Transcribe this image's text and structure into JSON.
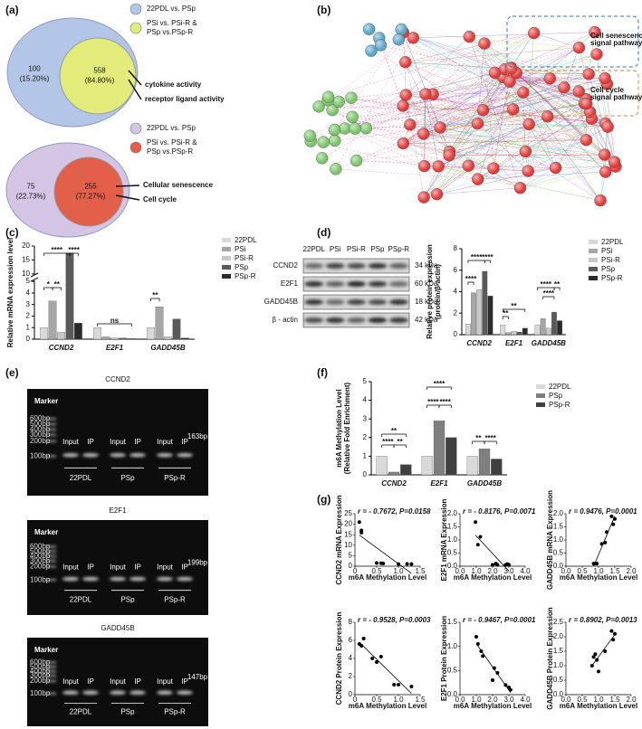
{
  "panel_labels": [
    "(a)",
    "(b)",
    "(c)",
    "(d)",
    "(e)",
    "(f)",
    "(g)"
  ],
  "venns": [
    {
      "legend": [
        {
          "color": "#b4c6e7",
          "lines": [
            "22PDL vs. PSp"
          ]
        },
        {
          "color": "#e2ec7a",
          "lines": [
            "PSi vs. PSi-R &",
            "PSp vs.PSp-R"
          ]
        }
      ],
      "outer": [
        "100",
        "(15.20%)"
      ],
      "inner": [
        "558",
        "(84.80%)"
      ],
      "terms": [
        "cytokine activity",
        "receptor ligand activity"
      ]
    },
    {
      "legend": [
        {
          "color": "#d5c5e4",
          "lines": [
            "22PDL vs. PSp"
          ]
        },
        {
          "color": "#e2604a",
          "lines": [
            "PSi vs. PSi-R &",
            "PSp vs.PSp-R"
          ]
        }
      ],
      "outer": [
        "75",
        "(22.73%)"
      ],
      "inner": [
        "255",
        "(77.27%)"
      ],
      "terms": [
        "Cellular senescence",
        "Cell cycle"
      ]
    }
  ],
  "network": {
    "pathways": [
      {
        "lines": [
          "Cell senescence",
          "signal pathway"
        ],
        "color": "#2e75b6"
      },
      {
        "lines": [
          "Cell  cycle",
          "signal pathway"
        ],
        "color": "#e07b39"
      }
    ]
  },
  "blot": {
    "lanes": [
      "22PDL",
      "PSi",
      "PSi-R",
      "PSp",
      "PSp-R"
    ],
    "proteins": [
      "CCND2",
      "E2F1",
      "GADD45B",
      "β - actin"
    ],
    "sizes": [
      "34 kDa",
      "60 kDa",
      "18 kDa",
      "42 kDa"
    ]
  },
  "gels": [
    {
      "title": "CCND2",
      "marker": "Marker",
      "ladder": [
        "600bp",
        "500bp",
        "400bp",
        "300bp",
        "200bp",
        "100bp"
      ],
      "lanes": [
        "Input",
        "IP",
        "Input",
        "IP",
        "Input",
        "IP"
      ],
      "groups": [
        "22PDL",
        "PSp",
        "PSp-R"
      ],
      "size": "163bp"
    },
    {
      "title": "E2F1",
      "marker": "Marker",
      "ladder": [
        "600bp",
        "500bp",
        "400bp",
        "300bp",
        "200bp",
        "100bp"
      ],
      "lanes": [
        "Input",
        "IP",
        "Input",
        "IP",
        "Input",
        "IP"
      ],
      "groups": [
        "22PDL",
        "PSp",
        "PSp-R"
      ],
      "size": "199bp"
    },
    {
      "title": "GADD45B",
      "marker": "Marker",
      "ladder": [
        "600bp",
        "500bp",
        "400bp",
        "300bp",
        "200bp",
        "100bp"
      ],
      "lanes": [
        "Input",
        "IP",
        "Input",
        "IP",
        "Input",
        "IP"
      ],
      "groups": [
        "22PDL",
        "PSp",
        "PSp-R"
      ],
      "size": "147bp"
    }
  ],
  "chart_data": [
    {
      "type": "bar",
      "y_label": [
        "Relative mRNA expression level"
      ],
      "categories": [
        "CCND2",
        "E2F1",
        "GADD45B"
      ],
      "series": [
        {
          "name": "22PDL",
          "color": "#d9d9d9",
          "values": [
            1,
            1,
            1
          ]
        },
        {
          "name": "PSi",
          "color": "#a6a6a6",
          "values": [
            3.3,
            0.2,
            2.8
          ]
        },
        {
          "name": "PSi-R",
          "color": "#c8c8c8",
          "values": [
            0.6,
            0.1,
            0.2
          ]
        },
        {
          "name": "PSp",
          "color": "#5a5a5a",
          "values": [
            17.5,
            0.1,
            1.75
          ]
        },
        {
          "name": "PSp-R",
          "color": "#2b2b2b",
          "values": [
            1.4,
            0.05,
            0.1
          ]
        }
      ],
      "ylim": [
        0,
        20
      ],
      "yticks": [
        0,
        1,
        2,
        3,
        4,
        5,
        10,
        15,
        20
      ],
      "axis_break": [
        5,
        10
      ],
      "annotations": [
        "*",
        "**",
        "****",
        "****",
        "ns",
        "**"
      ]
    },
    {
      "type": "bar",
      "y_label": [
        "Relative protein expression",
        "(protein/β-actin)"
      ],
      "categories": [
        "CCND2",
        "E2F1",
        "GADD45B"
      ],
      "series": [
        {
          "name": "22PDL",
          "color": "#d9d9d9",
          "values": [
            1,
            0.9,
            0.9
          ]
        },
        {
          "name": "PSi",
          "color": "#a6a6a6",
          "values": [
            3.9,
            0.2,
            1.5
          ]
        },
        {
          "name": "PSi-R",
          "color": "#c8c8c8",
          "values": [
            4.2,
            0.3,
            0.6
          ]
        },
        {
          "name": "PSp",
          "color": "#5a5a5a",
          "values": [
            5.9,
            0.25,
            2.1
          ]
        },
        {
          "name": "PSp-R",
          "color": "#2b2b2b",
          "values": [
            3.6,
            0.6,
            1.3
          ]
        }
      ],
      "ylim": [
        0,
        8
      ],
      "yticks": [
        0,
        2,
        4,
        6,
        8
      ],
      "annotations": [
        "****",
        "****",
        "****",
        "**",
        "**",
        "****",
        "****",
        "**"
      ]
    },
    {
      "type": "bar",
      "y_label": [
        "m6A Methylation Level",
        "(Relative Fold Enrichment)"
      ],
      "categories": [
        "CCND2",
        "E2F1",
        "GADD45B"
      ],
      "series": [
        {
          "name": "22PDL",
          "color": "#d9d9d9",
          "values": [
            1,
            1,
            1
          ]
        },
        {
          "name": "PSp",
          "color": "#7f7f7f",
          "values": [
            0.15,
            2.9,
            1.4
          ]
        },
        {
          "name": "PSp-R",
          "color": "#404040",
          "values": [
            0.55,
            2.0,
            0.85
          ]
        }
      ],
      "ylim": [
        0,
        5
      ],
      "yticks": [
        0,
        1,
        2,
        3,
        4,
        5
      ],
      "annotations": [
        "**",
        "****",
        "**",
        "****",
        "****",
        "****",
        "**",
        "****"
      ]
    },
    {
      "type": "scatter",
      "annotation": "r = - 0.7672, P=0.0158",
      "y_label": "CCND2 mRNA Expression",
      "x_label": "m6A Methylation Level",
      "x": [
        0.1,
        0.15,
        0.15,
        0.5,
        0.6,
        0.65,
        1.0,
        1.2,
        1.3
      ],
      "values": [
        21,
        17,
        16,
        1.5,
        1.4,
        1.3,
        1,
        1.1,
        1.0
      ],
      "xlim": [
        0,
        1.5
      ],
      "xticks": [
        0,
        0.5,
        {
          "value": 1,
          "label": "1.0"
        },
        1.5
      ],
      "ylim": [
        0,
        25
      ],
      "yticks": [
        0,
        5,
        10,
        15,
        20,
        25
      ]
    },
    {
      "type": "scatter",
      "annotation": "r = - 0.8176, P=0.0071",
      "y_label": "E2F1 mRNA Expression",
      "x_label": "m6A Methylation Level",
      "x": [
        0.95,
        1.25,
        1.1,
        2.0,
        2.3,
        2.8,
        2.9,
        3.0,
        2.2
      ],
      "values": [
        1.68,
        1.12,
        0.82,
        0.05,
        0.05,
        0.05,
        0.08,
        0.05,
        0.1
      ],
      "xlim": [
        0,
        4
      ],
      "xticks": [
        {
          "value": 0,
          "label": "0.0"
        },
        {
          "value": 1,
          "label": "1.0"
        },
        {
          "value": 2,
          "label": "2.0"
        },
        {
          "value": 3,
          "label": "3.0"
        },
        {
          "value": 4,
          "label": "4.0"
        }
      ],
      "ylim": [
        0,
        2
      ],
      "yticks": [
        {
          "value": 0,
          "label": "0.0"
        },
        0.5,
        {
          "value": 1,
          "label": "1.0"
        },
        1.5,
        {
          "value": 2,
          "label": "2.0"
        }
      ]
    },
    {
      "type": "scatter",
      "annotation": "r = 0.9476, P=0.0001",
      "y_label": "GADD45B mRNA Expression",
      "x_label": "m6A Methylation Level",
      "x": [
        0.85,
        0.9,
        0.95,
        1.1,
        1.2,
        1.25,
        1.4,
        1.45,
        1.5
      ],
      "values": [
        0.1,
        0.1,
        0.1,
        0.85,
        0.9,
        1.3,
        1.9,
        1.6,
        1.8
      ],
      "xlim": [
        0,
        2
      ],
      "xticks": [
        {
          "value": 0,
          "label": "0.0"
        },
        0.5,
        {
          "value": 1,
          "label": "1.0"
        },
        1.5,
        {
          "value": 2,
          "label": "2.0"
        }
      ],
      "ylim": [
        0,
        2
      ],
      "yticks": [
        {
          "value": 0,
          "label": "0.0"
        },
        0.5,
        {
          "value": 1,
          "label": "1.0"
        },
        1.5,
        {
          "value": 2,
          "label": "2.0"
        }
      ]
    },
    {
      "type": "scatter",
      "annotation": "r = - 0.9528, P=0.0003",
      "y_label": "CCND2 Protein Expression",
      "x_label": "m6A Methylation Level",
      "x": [
        0.1,
        0.15,
        0.2,
        0.4,
        0.5,
        0.6,
        0.9,
        1.0,
        1.3
      ],
      "values": [
        5.6,
        5.4,
        6.2,
        4,
        3.6,
        4.2,
        1.1,
        1.1,
        0.9
      ],
      "xlim": [
        0,
        1.5
      ],
      "xticks": [
        0,
        0.5,
        {
          "value": 1,
          "label": "1.0"
        },
        1.5
      ],
      "ylim": [
        0,
        8
      ],
      "yticks": [
        0,
        2,
        4,
        6,
        8
      ]
    },
    {
      "type": "scatter",
      "annotation": "r = - 0.9467, P=0.0001",
      "y_label": "E2F1 Protein Expression",
      "x_label": "m6A Methylation Level",
      "x": [
        1.0,
        1.1,
        1.3,
        1.4,
        2.1,
        2.3,
        2.0,
        2.8,
        3.0,
        3.1
      ],
      "values": [
        1.2,
        1.05,
        0.9,
        0.8,
        0.55,
        0.45,
        0.3,
        0.2,
        0.15,
        0.1
      ],
      "xlim": [
        0,
        4
      ],
      "xticks": [
        {
          "value": 0,
          "label": "0.0"
        },
        {
          "value": 1,
          "label": "1.0"
        },
        {
          "value": 2,
          "label": "2.0"
        },
        {
          "value": 3,
          "label": "3.0"
        },
        {
          "value": 4,
          "label": "4.0"
        }
      ],
      "ylim": [
        0,
        1.5
      ],
      "yticks": [
        {
          "value": 0,
          "label": "0.0"
        },
        0.5,
        {
          "value": 1,
          "label": "1.0"
        },
        1.5
      ]
    },
    {
      "type": "scatter",
      "annotation": "r = 0.8902, P=0.0013",
      "y_label": "GADD45B Protein Expression",
      "x_label": "m6A Methylation Level",
      "x": [
        0.8,
        0.85,
        0.9,
        0.95,
        1.0,
        1.2,
        1.4,
        1.5,
        1.45
      ],
      "values": [
        1.0,
        1.3,
        1.4,
        1.2,
        0.8,
        1.5,
        2.2,
        2.1,
        1.9
      ],
      "xlim": [
        0,
        2
      ],
      "xticks": [
        {
          "value": 0,
          "label": "0.0"
        },
        0.5,
        {
          "value": 1,
          "label": "1.0"
        },
        1.5,
        {
          "value": 2,
          "label": "2.0"
        }
      ],
      "ylim": [
        0,
        2.5
      ],
      "yticks": [
        {
          "value": 0,
          "label": "0.0"
        },
        0.5,
        {
          "value": 1,
          "label": "1.0"
        },
        1.5,
        {
          "value": 2,
          "label": "2.0"
        },
        2.5
      ]
    }
  ]
}
